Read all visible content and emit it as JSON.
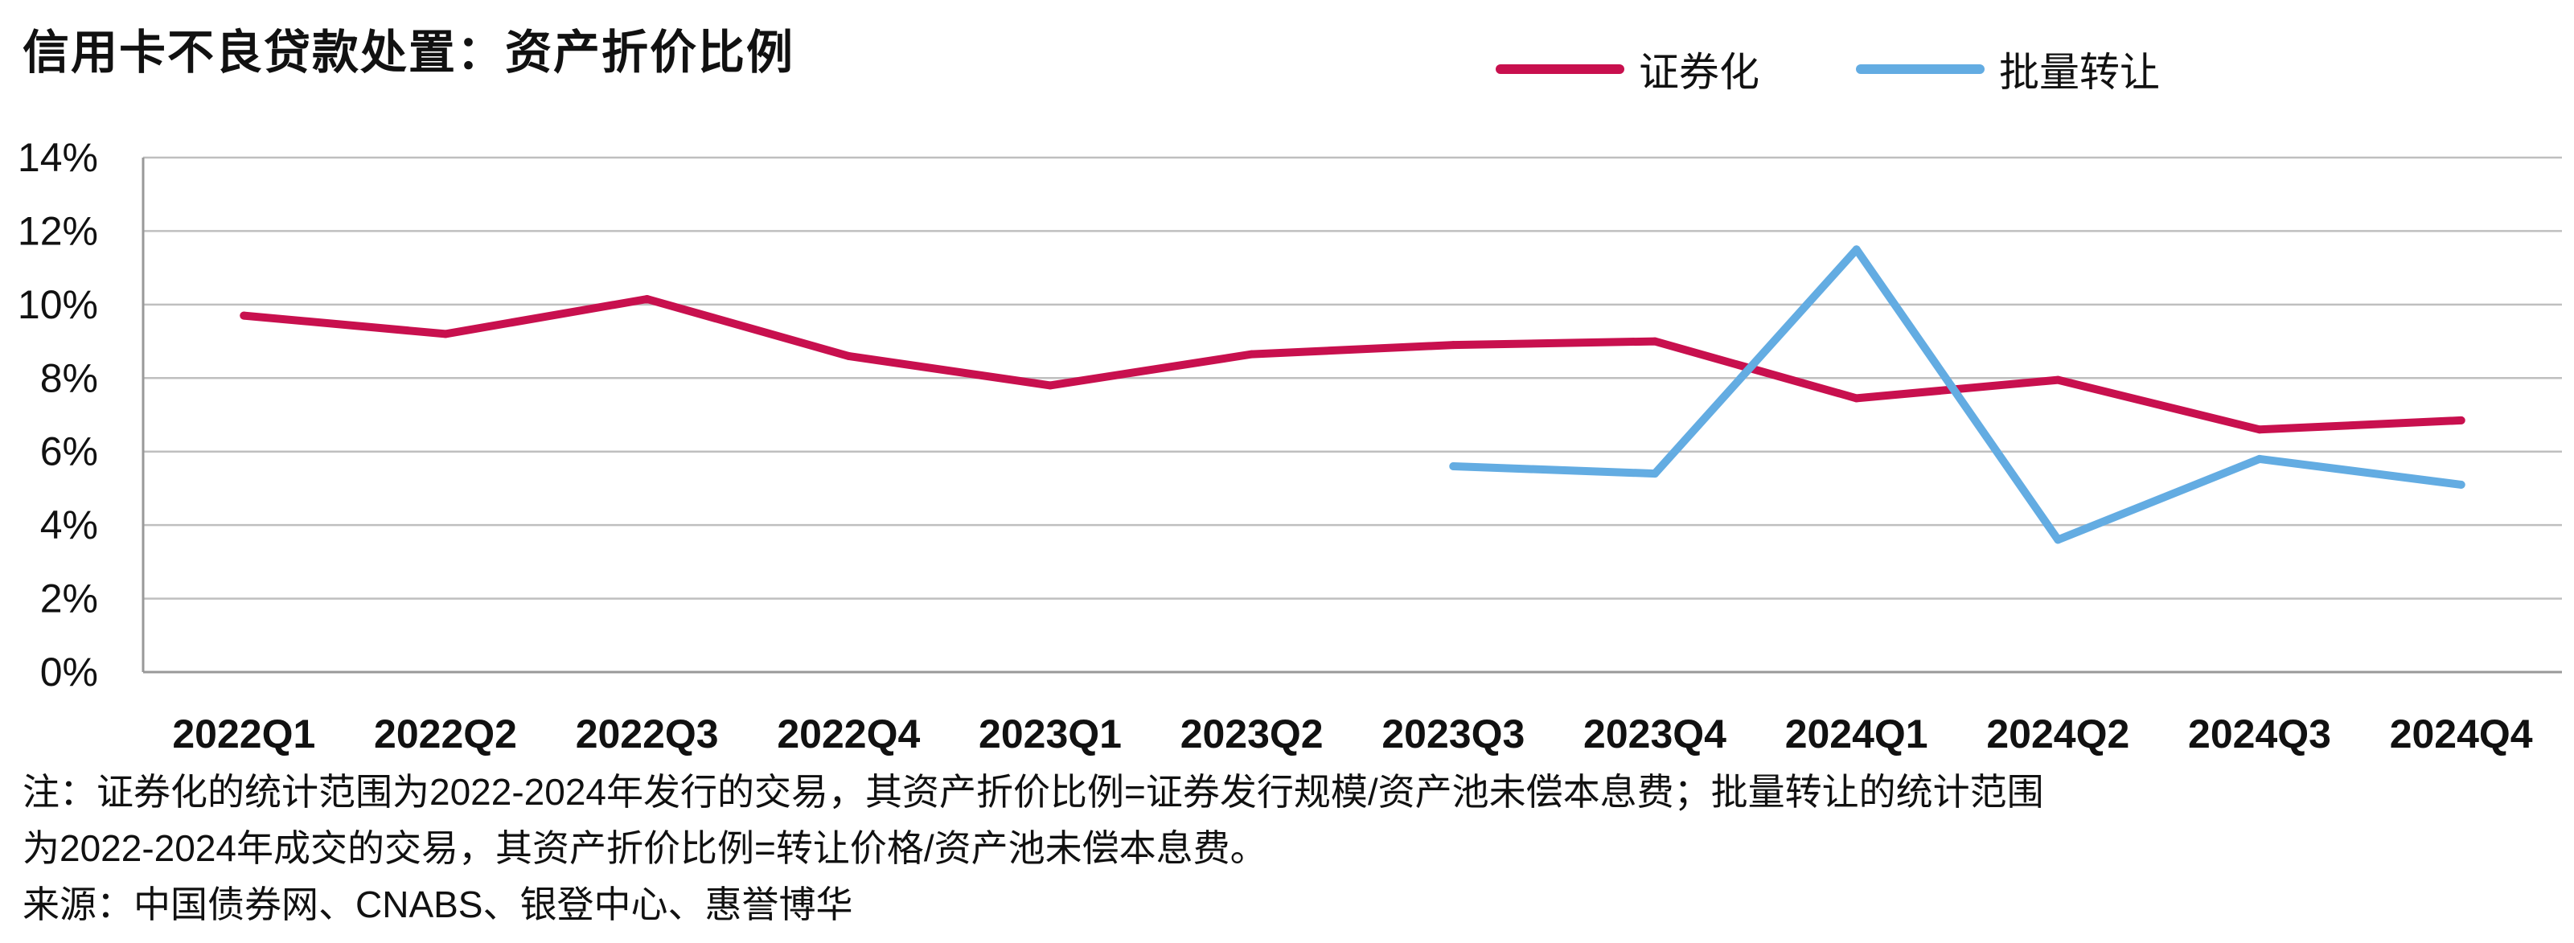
{
  "title": "信用卡不良贷款处置：资产折价比例",
  "legend": {
    "series1": "证券化",
    "series2": "批量转让"
  },
  "colors": {
    "series1": "#C8104E",
    "series2": "#63ACE2",
    "grid": "#BFBFBF",
    "axis": "#999999"
  },
  "chart_data": {
    "type": "line",
    "title": "信用卡不良贷款处置：资产折价比例",
    "categories": [
      "2022Q1",
      "2022Q2",
      "2022Q3",
      "2022Q4",
      "2023Q1",
      "2023Q2",
      "2023Q3",
      "2023Q4",
      "2024Q1",
      "2024Q2",
      "2024Q3",
      "2024Q4"
    ],
    "y_ticks": [
      "0%",
      "2%",
      "4%",
      "6%",
      "8%",
      "10%",
      "12%",
      "14%"
    ],
    "ylim": [
      0,
      14
    ],
    "grid": true,
    "legend_position": "top-right",
    "series": [
      {
        "name": "证券化",
        "color": "#C8104E",
        "values": [
          9.7,
          9.2,
          10.15,
          8.6,
          7.8,
          8.65,
          8.9,
          9.0,
          7.45,
          7.95,
          6.6,
          6.85
        ]
      },
      {
        "name": "批量转让",
        "color": "#63ACE2",
        "values": [
          null,
          null,
          null,
          null,
          null,
          null,
          5.6,
          5.4,
          11.5,
          3.6,
          5.8,
          5.1
        ]
      }
    ]
  },
  "notes": {
    "line1": "注：证券化的统计范围为2022-2024年发行的交易，其资产折价比例=证券发行规模/资产池未偿本息费；批量转让的统计范围",
    "line2": "为2022-2024年成交的交易，其资产折价比例=转让价格/资产池未偿本息费。",
    "source": "来源：中国债券网、CNABS、银登中心、惠誉博华"
  }
}
